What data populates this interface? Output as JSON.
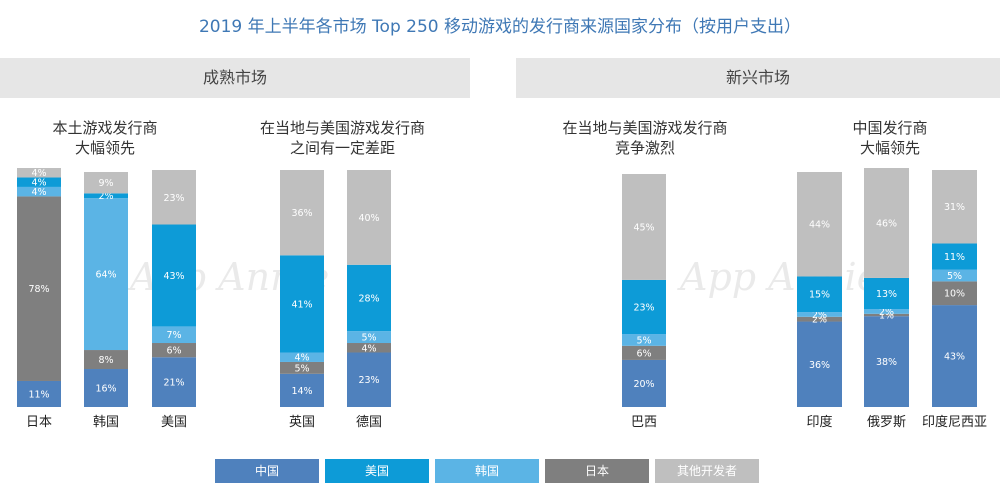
{
  "title": "2019 年上半年各市场 Top 250 移动游戏的发行商来源国家分布（按用户支出）",
  "sections": [
    {
      "label": "成熟市场"
    },
    {
      "label": "新兴市场"
    }
  ],
  "groups": [
    {
      "line1": "本土游戏发行商",
      "line2": "大幅领先"
    },
    {
      "line1": "在当地与美国游戏发行商",
      "line2": "之间有一定差距"
    },
    {
      "line1": "在当地与美国游戏发行商",
      "line2": "竞争激烈"
    },
    {
      "line1": "中国发行商",
      "line2": "大幅领先"
    }
  ],
  "watermark": "App Annie",
  "chart_data": {
    "type": "bar",
    "stacked": true,
    "title": "2019 年上半年各市场 Top 250 移动游戏的发行商来源国家分布（按用户支出）",
    "categories": [
      "日本",
      "韩国",
      "美国",
      "英国",
      "德国",
      "巴西",
      "印度",
      "俄罗斯",
      "印度尼西亚"
    ],
    "series": [
      {
        "name": "中国",
        "color": "#4f81bd",
        "values": [
          11,
          16,
          21,
          14,
          23,
          20,
          36,
          38,
          43
        ]
      },
      {
        "name": "日本",
        "color": "#7f7f7f",
        "values": [
          78,
          8,
          6,
          5,
          4,
          6,
          2,
          1,
          10
        ]
      },
      {
        "name": "韩国",
        "color": "#5bb4e5",
        "values": [
          4,
          64,
          7,
          4,
          5,
          5,
          2,
          2,
          5
        ]
      },
      {
        "name": "美国",
        "color": "#0d9bd7",
        "values": [
          4,
          2,
          43,
          41,
          28,
          23,
          15,
          13,
          11
        ]
      },
      {
        "name": "其他开发者",
        "color": "#bfbfbf",
        "values": [
          4,
          9,
          23,
          36,
          40,
          45,
          44,
          46,
          31
        ]
      }
    ],
    "legend_order": [
      "中国",
      "美国",
      "韩国",
      "日本",
      "其他开发者"
    ],
    "unit": "%",
    "legend": "bottom"
  }
}
